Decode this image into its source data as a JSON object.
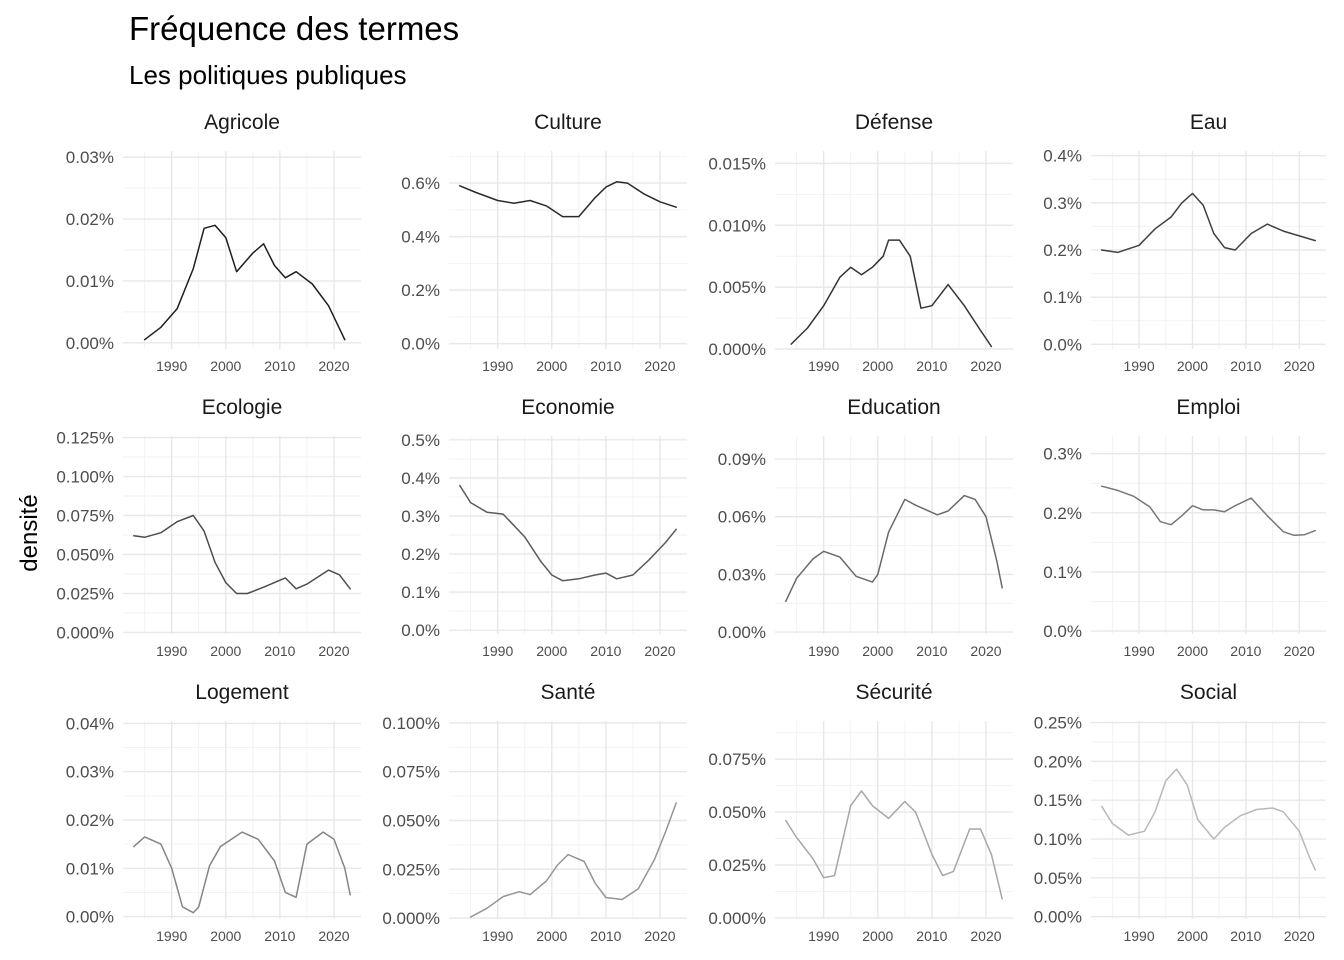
{
  "title": "Fréquence des termes",
  "subtitle": "Les politiques publiques",
  "chart_data": {
    "type": "line",
    "ylabel": "densité",
    "xlabel": "",
    "grid": true,
    "legend": "none",
    "xlim": [
      1981,
      2025
    ],
    "x_ticks": [
      1990,
      2000,
      2010,
      2020
    ],
    "panels": [
      {
        "name": "Agricole",
        "color": "#1e1e1e",
        "ylim": [
          -0.001,
          0.031
        ],
        "yticks": [
          0,
          0.01,
          0.02,
          0.03
        ],
        "ytick_labels": [
          "0.00%",
          "0.01%",
          "0.02%",
          "0.03%"
        ],
        "x": [
          1985,
          1988,
          1991,
          1994,
          1996,
          1998,
          2000,
          2002,
          2005,
          2007,
          2009,
          2011,
          2013,
          2016,
          2019,
          2022
        ],
        "y": [
          0.0005,
          0.0025,
          0.0055,
          0.012,
          0.0185,
          0.019,
          0.017,
          0.0115,
          0.0145,
          0.016,
          0.0125,
          0.0105,
          0.0115,
          0.0095,
          0.006,
          0.0005
        ]
      },
      {
        "name": "Culture",
        "color": "#2a2a2a",
        "ylim": [
          -0.02,
          0.72
        ],
        "yticks": [
          0,
          0.2,
          0.4,
          0.6
        ],
        "ytick_labels": [
          "0.0%",
          "0.2%",
          "0.4%",
          "0.6%"
        ],
        "x": [
          1983,
          1986,
          1990,
          1993,
          1996,
          1999,
          2002,
          2005,
          2008,
          2010,
          2012,
          2014,
          2017,
          2020,
          2023
        ],
        "y": [
          0.59,
          0.565,
          0.535,
          0.525,
          0.535,
          0.515,
          0.475,
          0.475,
          0.545,
          0.585,
          0.605,
          0.6,
          0.56,
          0.53,
          0.51
        ]
      },
      {
        "name": "Défense",
        "color": "#353535",
        "ylim": [
          0,
          0.016
        ],
        "yticks": [
          0,
          0.005,
          0.01,
          0.015
        ],
        "ytick_labels": [
          "0.000%",
          "0.005%",
          "0.010%",
          "0.015%"
        ],
        "x": [
          1984,
          1987,
          1990,
          1993,
          1995,
          1997,
          1999,
          2001,
          2002,
          2004,
          2006,
          2008,
          2010,
          2013,
          2016,
          2019,
          2021
        ],
        "y": [
          0.0004,
          0.0017,
          0.0035,
          0.0058,
          0.0066,
          0.006,
          0.0066,
          0.0075,
          0.0088,
          0.0088,
          0.0075,
          0.0033,
          0.0035,
          0.0052,
          0.0035,
          0.0015,
          0.0002
        ]
      },
      {
        "name": "Eau",
        "color": "#414141",
        "ylim": [
          -0.01,
          0.41
        ],
        "yticks": [
          0,
          0.1,
          0.2,
          0.3,
          0.4
        ],
        "ytick_labels": [
          "0.0%",
          "0.1%",
          "0.2%",
          "0.3%",
          "0.4%"
        ],
        "x": [
          1983,
          1986,
          1990,
          1993,
          1996,
          1998,
          2000,
          2002,
          2004,
          2006,
          2008,
          2011,
          2014,
          2017,
          2020,
          2023
        ],
        "y": [
          0.2,
          0.195,
          0.21,
          0.245,
          0.27,
          0.3,
          0.32,
          0.295,
          0.235,
          0.205,
          0.2,
          0.235,
          0.255,
          0.24,
          0.23,
          0.22
        ]
      },
      {
        "name": "Ecologie",
        "color": "#4d4d4d",
        "ylim": [
          -0.001,
          0.126
        ],
        "yticks": [
          0,
          0.025,
          0.05,
          0.075,
          0.1,
          0.125
        ],
        "ytick_labels": [
          "0.000%",
          "0.025%",
          "0.050%",
          "0.075%",
          "0.100%",
          "0.125%"
        ],
        "x": [
          1983,
          1985,
          1988,
          1991,
          1994,
          1996,
          1998,
          2000,
          2002,
          2004,
          2007,
          2011,
          2013,
          2015,
          2019,
          2021,
          2023
        ],
        "y": [
          0.062,
          0.061,
          0.064,
          0.071,
          0.075,
          0.065,
          0.045,
          0.032,
          0.025,
          0.025,
          0.029,
          0.035,
          0.028,
          0.031,
          0.04,
          0.037,
          0.028
        ]
      },
      {
        "name": "Economie",
        "color": "#5a5a5a",
        "ylim": [
          -0.01,
          0.51
        ],
        "yticks": [
          0,
          0.1,
          0.2,
          0.3,
          0.4,
          0.5
        ],
        "ytick_labels": [
          "0.0%",
          "0.1%",
          "0.2%",
          "0.3%",
          "0.4%",
          "0.5%"
        ],
        "x": [
          1983,
          1985,
          1988,
          1991,
          1995,
          1998,
          2000,
          2002,
          2005,
          2008,
          2010,
          2012,
          2015,
          2018,
          2021,
          2023
        ],
        "y": [
          0.38,
          0.335,
          0.31,
          0.305,
          0.245,
          0.18,
          0.145,
          0.13,
          0.135,
          0.145,
          0.15,
          0.135,
          0.145,
          0.185,
          0.23,
          0.265
        ]
      },
      {
        "name": "Education",
        "color": "#696969",
        "ylim": [
          -0.001,
          0.102
        ],
        "yticks": [
          0,
          0.03,
          0.06,
          0.09
        ],
        "ytick_labels": [
          "0.00%",
          "0.03%",
          "0.06%",
          "0.09%"
        ],
        "x": [
          1983,
          1985,
          1988,
          1990,
          1993,
          1996,
          1999,
          2000,
          2002,
          2005,
          2007,
          2011,
          2013,
          2016,
          2018,
          2020,
          2022,
          2023
        ],
        "y": [
          0.016,
          0.028,
          0.038,
          0.042,
          0.039,
          0.029,
          0.026,
          0.03,
          0.052,
          0.069,
          0.066,
          0.061,
          0.063,
          0.071,
          0.069,
          0.06,
          0.037,
          0.023
        ]
      },
      {
        "name": "Emploi",
        "color": "#777777",
        "ylim": [
          -0.005,
          0.33
        ],
        "yticks": [
          0,
          0.1,
          0.2,
          0.3
        ],
        "ytick_labels": [
          "0.0%",
          "0.1%",
          "0.2%",
          "0.3%"
        ],
        "x": [
          1983,
          1986,
          1989,
          1992,
          1994,
          1996,
          1998,
          2000,
          2002,
          2004,
          2006,
          2008,
          2011,
          2014,
          2017,
          2019,
          2021,
          2023
        ],
        "y": [
          0.245,
          0.238,
          0.228,
          0.21,
          0.185,
          0.18,
          0.195,
          0.212,
          0.205,
          0.205,
          0.202,
          0.212,
          0.225,
          0.195,
          0.168,
          0.162,
          0.163,
          0.17
        ]
      },
      {
        "name": "Logement",
        "color": "#858585",
        "ylim": [
          -0.0005,
          0.0405
        ],
        "yticks": [
          0,
          0.01,
          0.02,
          0.03,
          0.04
        ],
        "ytick_labels": [
          "0.00%",
          "0.01%",
          "0.02%",
          "0.03%",
          "0.04%"
        ],
        "x": [
          1983,
          1985,
          1988,
          1990,
          1992,
          1994,
          1995,
          1997,
          1999,
          2003,
          2006,
          2009,
          2011,
          2013,
          2015,
          2018,
          2020,
          2022,
          2023
        ],
        "y": [
          0.0145,
          0.0165,
          0.015,
          0.01,
          0.002,
          0.0008,
          0.002,
          0.0105,
          0.0145,
          0.0175,
          0.016,
          0.0115,
          0.005,
          0.004,
          0.015,
          0.0175,
          0.016,
          0.01,
          0.0045
        ]
      },
      {
        "name": "Santé",
        "color": "#959595",
        "ylim": [
          -0.0005,
          0.101
        ],
        "yticks": [
          0,
          0.025,
          0.05,
          0.075,
          0.1
        ],
        "ytick_labels": [
          "0.000%",
          "0.025%",
          "0.050%",
          "0.075%",
          "0.100%"
        ],
        "x": [
          1985,
          1988,
          1991,
          1994,
          1996,
          1999,
          2001,
          2003,
          2006,
          2008,
          2010,
          2013,
          2016,
          2019,
          2021,
          2023
        ],
        "y": [
          0.0005,
          0.005,
          0.011,
          0.0135,
          0.012,
          0.019,
          0.027,
          0.0325,
          0.029,
          0.018,
          0.0105,
          0.0095,
          0.015,
          0.03,
          0.044,
          0.059
        ]
      },
      {
        "name": "Sécurité",
        "color": "#a6a6a6",
        "ylim": [
          -0.0005,
          0.093
        ],
        "yticks": [
          0,
          0.025,
          0.05,
          0.075
        ],
        "ytick_labels": [
          "0.000%",
          "0.025%",
          "0.050%",
          "0.075%"
        ],
        "x": [
          1983,
          1985,
          1988,
          1990,
          1992,
          1995,
          1997,
          1999,
          2002,
          2005,
          2007,
          2010,
          2012,
          2014,
          2017,
          2019,
          2021,
          2023
        ],
        "y": [
          0.046,
          0.038,
          0.028,
          0.019,
          0.02,
          0.053,
          0.06,
          0.053,
          0.047,
          0.055,
          0.05,
          0.03,
          0.02,
          0.022,
          0.042,
          0.042,
          0.03,
          0.009
        ]
      },
      {
        "name": "Social",
        "color": "#b8b8b8",
        "ylim": [
          -0.003,
          0.252
        ],
        "yticks": [
          0,
          0.05,
          0.1,
          0.15,
          0.2,
          0.25
        ],
        "ytick_labels": [
          "0.00%",
          "0.05%",
          "0.10%",
          "0.15%",
          "0.20%",
          "0.25%"
        ],
        "x": [
          1983,
          1985,
          1988,
          1991,
          1993,
          1995,
          1997,
          1999,
          2001,
          2004,
          2006,
          2009,
          2012,
          2015,
          2017,
          2020,
          2022,
          2023
        ],
        "y": [
          0.142,
          0.12,
          0.105,
          0.11,
          0.135,
          0.175,
          0.19,
          0.17,
          0.125,
          0.1,
          0.115,
          0.13,
          0.138,
          0.14,
          0.135,
          0.11,
          0.075,
          0.06
        ]
      }
    ]
  }
}
